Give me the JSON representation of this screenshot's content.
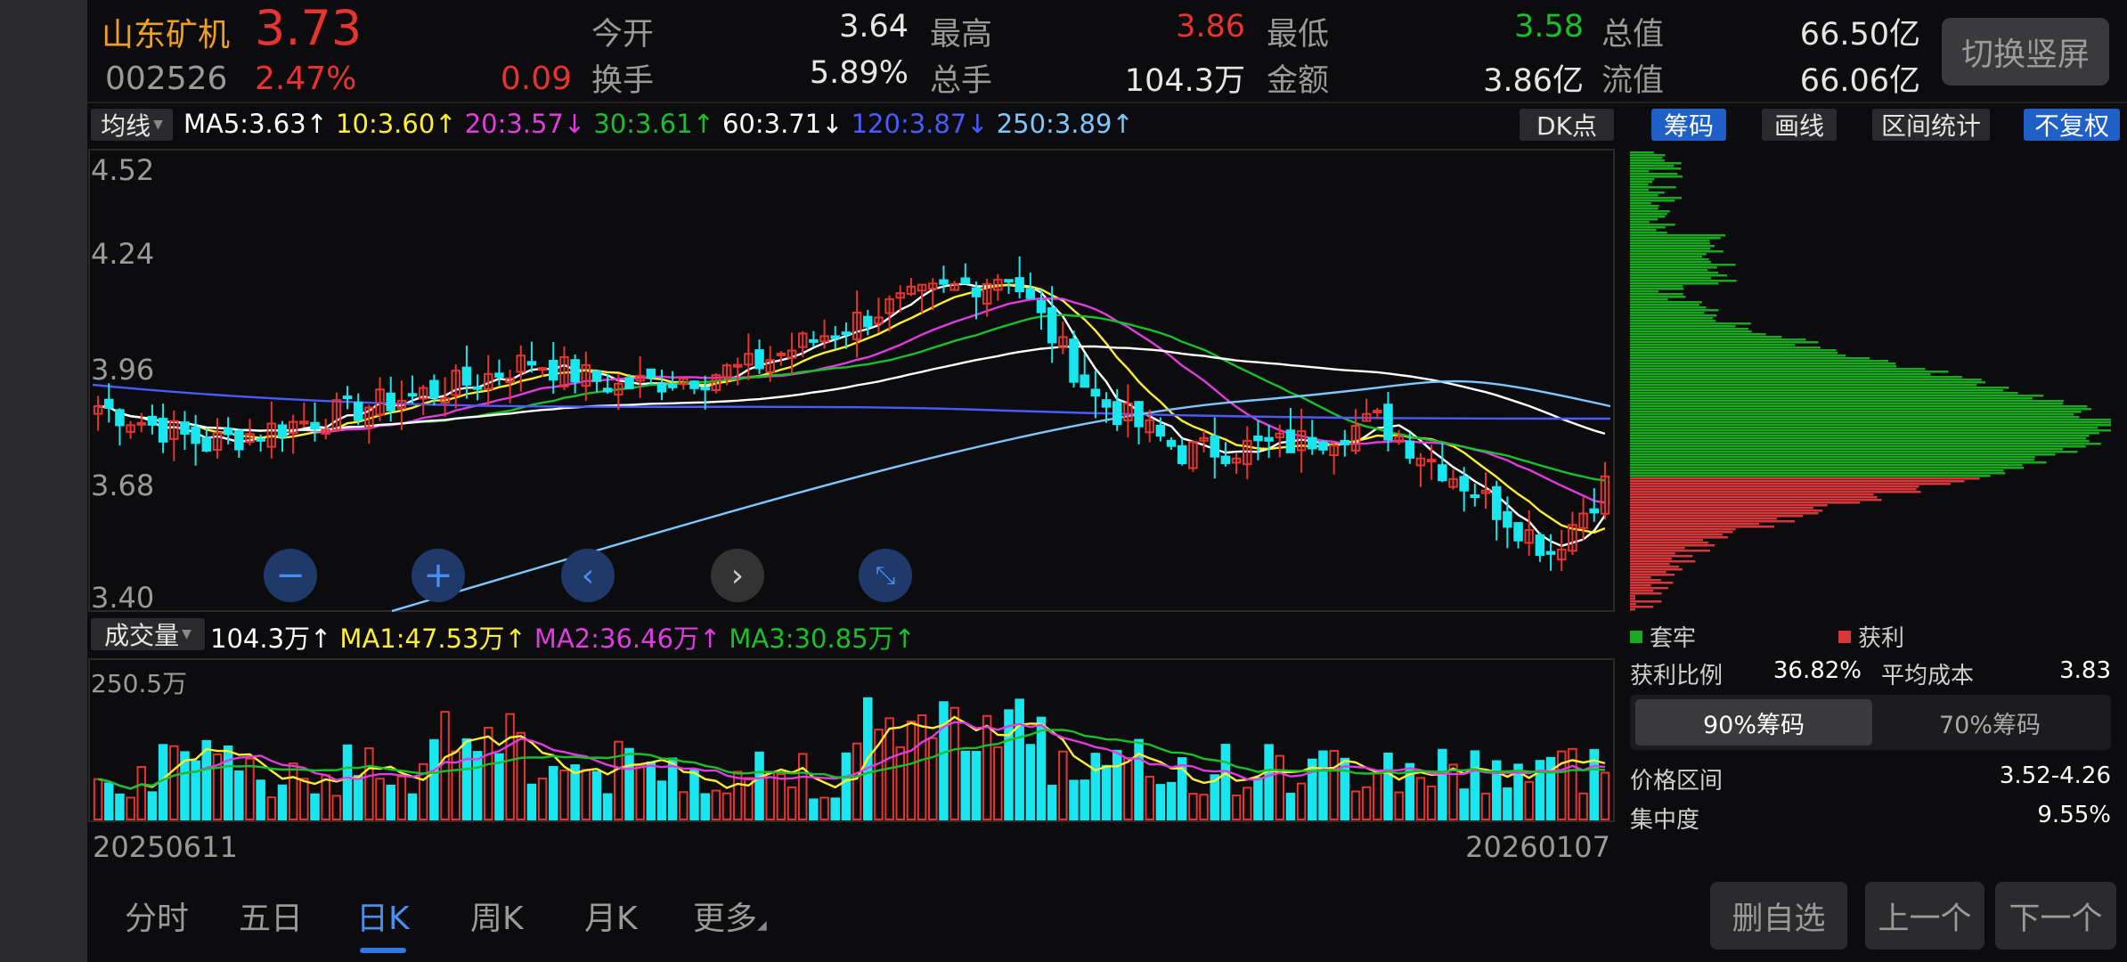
{
  "stock": {
    "name": "山东矿机",
    "code": "002526",
    "price": "3.73",
    "change_pct": "2.47%",
    "change_abs": "0.09"
  },
  "quote": {
    "open_label": "今开",
    "open": "3.64",
    "high_label": "最高",
    "high": "3.86",
    "low_label": "最低",
    "low": "3.58",
    "mktcap_label": "总值",
    "mktcap": "66.50亿",
    "turnover_label": "换手",
    "turnover": "5.89%",
    "volume_label": "总手",
    "volume": "104.3万",
    "amount_label": "金额",
    "amount": "3.86亿",
    "float_label": "流值",
    "float_cap": "66.06亿"
  },
  "switch_button": "切换竖屏",
  "indicator_bar": {
    "selector": "均线",
    "ma5": "MA5:3.63↑",
    "ma10": "10:3.60↑",
    "ma20": "20:3.57↓",
    "ma30": "30:3.61↑",
    "ma60": "60:3.71↓",
    "ma120": "120:3.87↓",
    "ma250": "250:3.89↑",
    "dk": "DK点"
  },
  "right_tabs": {
    "chips": "筹码",
    "draw": "画线",
    "interval": "区间统计",
    "adjust": "不复权"
  },
  "price_axis": [
    "4.52",
    "4.24",
    "3.96",
    "3.68",
    "3.40"
  ],
  "volume_bar": {
    "selector": "成交量",
    "vol": "104.3万↑",
    "ma1": "MA1:47.53万↑",
    "ma2": "MA2:36.46万↑",
    "ma3": "MA3:30.85万↑",
    "max_label": "250.5万"
  },
  "dates": {
    "start": "20250611",
    "end": "20260107"
  },
  "chip_panel": {
    "legend_trapped": "套牢",
    "legend_profit": "获利",
    "profit_ratio_label": "获利比例",
    "profit_ratio": "36.82%",
    "avg_cost_label": "平均成本",
    "avg_cost": "3.83",
    "seg_90": "90%筹码",
    "seg_70": "70%筹码",
    "range_label": "价格区间",
    "range": "3.52-4.26",
    "concentration_label": "集中度",
    "concentration": "9.55%"
  },
  "bottom_tabs": [
    "分时",
    "五日",
    "日K",
    "周K",
    "月K",
    "更多"
  ],
  "bottom_buttons": {
    "remove": "删自选",
    "prev": "上一个",
    "next": "下一个"
  },
  "colors": {
    "up": "#e8342f",
    "down": "#19e6ee",
    "ma5": "#ffffff",
    "ma10": "#ffee33",
    "ma20": "#e03ce0",
    "ma30": "#19c02a",
    "ma60": "#ffffff",
    "ma120": "#4a5cff",
    "ma250": "#7fc8ff"
  }
}
